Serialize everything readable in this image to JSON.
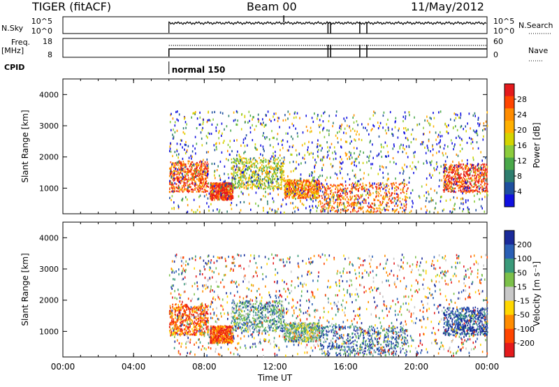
{
  "header": {
    "title": "TIGER (fitACF)",
    "beam": "Beam 00",
    "date": "11/May/2012"
  },
  "params": {
    "nsky_label": "N.Sky",
    "nsky_ticks": [
      "10^5",
      "10^0"
    ],
    "nsearch_label": "N.Search",
    "nsearch_ticks": [
      "10^5",
      "10^0"
    ],
    "freq_label": "Freq.",
    "freq_unit": "[MHz]",
    "freq_ticks": [
      "18",
      "8"
    ],
    "nave_label": "Nave",
    "nave_ticks": [
      "60",
      "0"
    ],
    "cpid_label": "CPID",
    "cpid_value": "normal 150"
  },
  "chart_data": [
    {
      "type": "heatmap",
      "name": "power-panel",
      "ylabel": "Slant Range [km]",
      "xlabel": "",
      "x_ticks": [
        "00:00",
        "04:00",
        "08:00",
        "12:00",
        "16:00",
        "20:00",
        "00:00"
      ],
      "x_range_hours": [
        0,
        24
      ],
      "y_ticks": [
        1000,
        2000,
        3000,
        4000
      ],
      "ylim": [
        180,
        4500
      ],
      "colorbar_label": "Power [dB]",
      "colorbar_ticks": [
        "28",
        "24",
        "20",
        "16",
        "12",
        "8",
        "4"
      ],
      "colorbar_colors": [
        "#e41a1c",
        "#ff4500",
        "#ff8c00",
        "#ffb000",
        "#d4d400",
        "#8ccc3c",
        "#4aa84a",
        "#2e7d6e",
        "#1e4f9f",
        "#1010e0"
      ],
      "data_start_hour": 6.0,
      "regions": [
        {
          "x": [
            6.0,
            8.2
          ],
          "y": [
            900,
            1900
          ],
          "level": 0.85
        },
        {
          "x": [
            8.3,
            9.6
          ],
          "y": [
            650,
            1200
          ],
          "level": 0.95
        },
        {
          "x": [
            9.5,
            12.5
          ],
          "y": [
            1000,
            2000
          ],
          "level": 0.5
        },
        {
          "x": [
            12.5,
            14.5
          ],
          "y": [
            700,
            1300
          ],
          "level": 0.75
        },
        {
          "x": [
            14.5,
            19.5
          ],
          "y": [
            250,
            1200
          ],
          "level": 0.8
        },
        {
          "x": [
            21.5,
            24.0
          ],
          "y": [
            900,
            1800
          ],
          "level": 0.9
        },
        {
          "x": [
            6.0,
            24.0
          ],
          "y": [
            250,
            3500
          ],
          "level": 0.3
        }
      ]
    },
    {
      "type": "heatmap",
      "name": "velocity-panel",
      "ylabel": "Slant Range [km]",
      "xlabel": "Time UT",
      "x_ticks": [
        "00:00",
        "04:00",
        "08:00",
        "12:00",
        "16:00",
        "20:00",
        "00:00"
      ],
      "x_range_hours": [
        0,
        24
      ],
      "y_ticks": [
        1000,
        2000,
        3000,
        4000
      ],
      "ylim": [
        180,
        4500
      ],
      "colorbar_label": "Velocity [m s⁻¹]",
      "colorbar_ticks": [
        "200",
        "100",
        "50",
        "15",
        "-15",
        "-50",
        "-100",
        "-200"
      ],
      "colorbar_colors": [
        "#1a2a9a",
        "#2a5fb5",
        "#3a9a7a",
        "#7cc04a",
        "#c8c8c8",
        "#ffd700",
        "#ff8c00",
        "#ff4500",
        "#e41a1c"
      ],
      "data_start_hour": 6.0,
      "regions": [
        {
          "x": [
            6.0,
            8.2
          ],
          "y": [
            900,
            1900
          ],
          "level": 0.2
        },
        {
          "x": [
            8.3,
            9.6
          ],
          "y": [
            650,
            1200
          ],
          "level": 0.15
        },
        {
          "x": [
            9.5,
            12.5
          ],
          "y": [
            1000,
            2000
          ],
          "level": 0.7
        },
        {
          "x": [
            12.5,
            14.5
          ],
          "y": [
            700,
            1300
          ],
          "level": 0.6
        },
        {
          "x": [
            14.5,
            19.5
          ],
          "y": [
            250,
            1200
          ],
          "level": 0.85
        },
        {
          "x": [
            21.5,
            24.0
          ],
          "y": [
            900,
            1800
          ],
          "level": 0.9
        },
        {
          "x": [
            6.0,
            24.0
          ],
          "y": [
            250,
            3500
          ],
          "level": 0.5
        }
      ]
    }
  ]
}
